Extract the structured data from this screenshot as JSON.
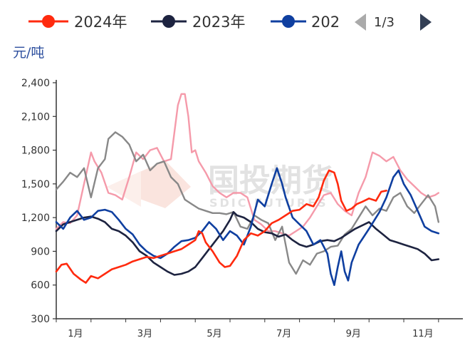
{
  "chart_data": {
    "type": "line",
    "ylabel": "元/吨",
    "ylim": [
      300,
      2400
    ],
    "yticks": [
      "2,400",
      "2,100",
      "1,800",
      "1,500",
      "1,200",
      "900",
      "600",
      "300"
    ],
    "xticks": [
      "1月",
      "3月",
      "5月",
      "7月",
      "9月",
      "11月"
    ],
    "grid": false,
    "legend_position": "top",
    "legend_page": "1/3",
    "series": [
      {
        "name": "2024年",
        "color": "#ff2a0e",
        "marker": true,
        "values": [
          [
            0,
            720
          ],
          [
            0.15,
            780
          ],
          [
            0.3,
            790
          ],
          [
            0.5,
            700
          ],
          [
            0.7,
            650
          ],
          [
            0.85,
            620
          ],
          [
            1.0,
            680
          ],
          [
            1.2,
            660
          ],
          [
            1.4,
            700
          ],
          [
            1.6,
            740
          ],
          [
            1.8,
            760
          ],
          [
            2.0,
            780
          ],
          [
            2.2,
            810
          ],
          [
            2.4,
            830
          ],
          [
            2.6,
            850
          ],
          [
            2.8,
            840
          ],
          [
            3.0,
            860
          ],
          [
            3.2,
            880
          ],
          [
            3.4,
            900
          ],
          [
            3.6,
            920
          ],
          [
            3.8,
            960
          ],
          [
            4.0,
            1000
          ],
          [
            4.1,
            1080
          ],
          [
            4.2,
            1060
          ],
          [
            4.3,
            980
          ],
          [
            4.5,
            900
          ],
          [
            4.7,
            800
          ],
          [
            4.85,
            760
          ],
          [
            5.0,
            770
          ],
          [
            5.2,
            860
          ],
          [
            5.4,
            1000
          ],
          [
            5.6,
            1060
          ],
          [
            5.8,
            1040
          ],
          [
            6.0,
            1080
          ],
          [
            6.2,
            1150
          ],
          [
            6.4,
            1180
          ],
          [
            6.6,
            1220
          ],
          [
            6.8,
            1260
          ],
          [
            7.0,
            1270
          ],
          [
            7.2,
            1320
          ],
          [
            7.4,
            1300
          ],
          [
            7.55,
            1380
          ],
          [
            7.7,
            1530
          ],
          [
            7.85,
            1620
          ],
          [
            8.0,
            1600
          ],
          [
            8.1,
            1500
          ],
          [
            8.2,
            1350
          ],
          [
            8.35,
            1260
          ],
          [
            8.5,
            1280
          ],
          [
            8.65,
            1320
          ],
          [
            8.8,
            1340
          ],
          [
            9.0,
            1370
          ],
          [
            9.2,
            1350
          ],
          [
            9.35,
            1430
          ],
          [
            9.5,
            1440
          ]
        ]
      },
      {
        "name": "2023年",
        "color": "#1d2340",
        "marker": true,
        "values": [
          [
            0,
            1080
          ],
          [
            0.2,
            1140
          ],
          [
            0.4,
            1160
          ],
          [
            0.6,
            1180
          ],
          [
            0.8,
            1200
          ],
          [
            1.0,
            1210
          ],
          [
            1.2,
            1190
          ],
          [
            1.4,
            1160
          ],
          [
            1.6,
            1100
          ],
          [
            1.8,
            1080
          ],
          [
            2.0,
            1040
          ],
          [
            2.2,
            980
          ],
          [
            2.4,
            900
          ],
          [
            2.6,
            860
          ],
          [
            2.8,
            800
          ],
          [
            3.0,
            760
          ],
          [
            3.2,
            720
          ],
          [
            3.4,
            690
          ],
          [
            3.6,
            700
          ],
          [
            3.8,
            720
          ],
          [
            4.0,
            760
          ],
          [
            4.2,
            840
          ],
          [
            4.4,
            920
          ],
          [
            4.6,
            1000
          ],
          [
            4.8,
            1080
          ],
          [
            5.0,
            1180
          ],
          [
            5.1,
            1250
          ],
          [
            5.2,
            1220
          ],
          [
            5.4,
            1200
          ],
          [
            5.6,
            1160
          ],
          [
            5.8,
            1100
          ],
          [
            6.0,
            1070
          ],
          [
            6.2,
            1060
          ],
          [
            6.4,
            1030
          ],
          [
            6.6,
            1050
          ],
          [
            6.8,
            1000
          ],
          [
            7.0,
            960
          ],
          [
            7.2,
            940
          ],
          [
            7.4,
            960
          ],
          [
            7.6,
            990
          ],
          [
            7.8,
            1000
          ],
          [
            8.0,
            990
          ],
          [
            8.2,
            1020
          ],
          [
            8.4,
            1060
          ],
          [
            8.6,
            1100
          ],
          [
            8.8,
            1130
          ],
          [
            9.0,
            1160
          ],
          [
            9.2,
            1100
          ],
          [
            9.4,
            1050
          ],
          [
            9.6,
            1000
          ],
          [
            9.8,
            980
          ],
          [
            10.0,
            960
          ],
          [
            10.2,
            940
          ],
          [
            10.4,
            920
          ],
          [
            10.6,
            880
          ],
          [
            10.8,
            820
          ],
          [
            11.0,
            830
          ]
        ]
      },
      {
        "name": "202",
        "color": "#0f3fa0",
        "marker": true,
        "values": [
          [
            0,
            1160
          ],
          [
            0.2,
            1100
          ],
          [
            0.4,
            1200
          ],
          [
            0.6,
            1260
          ],
          [
            0.8,
            1180
          ],
          [
            1.0,
            1200
          ],
          [
            1.2,
            1260
          ],
          [
            1.4,
            1270
          ],
          [
            1.6,
            1250
          ],
          [
            1.8,
            1180
          ],
          [
            2.0,
            1100
          ],
          [
            2.2,
            1050
          ],
          [
            2.4,
            960
          ],
          [
            2.6,
            900
          ],
          [
            2.8,
            860
          ],
          [
            3.0,
            840
          ],
          [
            3.2,
            880
          ],
          [
            3.4,
            940
          ],
          [
            3.6,
            990
          ],
          [
            3.8,
            1000
          ],
          [
            4.0,
            1020
          ],
          [
            4.2,
            1080
          ],
          [
            4.4,
            1160
          ],
          [
            4.6,
            1100
          ],
          [
            4.8,
            1000
          ],
          [
            5.0,
            1080
          ],
          [
            5.2,
            1040
          ],
          [
            5.4,
            960
          ],
          [
            5.6,
            1120
          ],
          [
            5.8,
            1360
          ],
          [
            6.0,
            1300
          ],
          [
            6.2,
            1500
          ],
          [
            6.35,
            1640
          ],
          [
            6.5,
            1500
          ],
          [
            6.6,
            1380
          ],
          [
            6.8,
            1200
          ],
          [
            7.0,
            1140
          ],
          [
            7.2,
            1080
          ],
          [
            7.4,
            960
          ],
          [
            7.6,
            1000
          ],
          [
            7.8,
            880
          ],
          [
            7.9,
            700
          ],
          [
            8.0,
            600
          ],
          [
            8.1,
            760
          ],
          [
            8.2,
            900
          ],
          [
            8.3,
            720
          ],
          [
            8.4,
            640
          ],
          [
            8.5,
            800
          ],
          [
            8.7,
            960
          ],
          [
            9.0,
            1100
          ],
          [
            9.3,
            1250
          ],
          [
            9.5,
            1380
          ],
          [
            9.7,
            1560
          ],
          [
            9.85,
            1620
          ],
          [
            10.0,
            1500
          ],
          [
            10.2,
            1400
          ],
          [
            10.4,
            1260
          ],
          [
            10.6,
            1120
          ],
          [
            10.8,
            1080
          ],
          [
            11.0,
            1060
          ]
        ]
      },
      {
        "color": "#888888",
        "marker": false,
        "values": [
          [
            0,
            1450
          ],
          [
            0.2,
            1520
          ],
          [
            0.4,
            1600
          ],
          [
            0.6,
            1560
          ],
          [
            0.8,
            1640
          ],
          [
            1.0,
            1380
          ],
          [
            1.2,
            1640
          ],
          [
            1.4,
            1720
          ],
          [
            1.5,
            1900
          ],
          [
            1.7,
            1960
          ],
          [
            1.9,
            1920
          ],
          [
            2.1,
            1850
          ],
          [
            2.3,
            1700
          ],
          [
            2.5,
            1760
          ],
          [
            2.7,
            1620
          ],
          [
            2.9,
            1680
          ],
          [
            3.1,
            1700
          ],
          [
            3.3,
            1560
          ],
          [
            3.5,
            1500
          ],
          [
            3.7,
            1360
          ],
          [
            3.9,
            1320
          ],
          [
            4.1,
            1280
          ],
          [
            4.3,
            1260
          ],
          [
            4.5,
            1240
          ],
          [
            4.7,
            1240
          ],
          [
            4.9,
            1230
          ],
          [
            5.1,
            1250
          ],
          [
            5.3,
            1120
          ],
          [
            5.5,
            1100
          ],
          [
            5.7,
            1220
          ],
          [
            5.9,
            1180
          ],
          [
            6.1,
            1150
          ],
          [
            6.3,
            1000
          ],
          [
            6.5,
            1120
          ],
          [
            6.7,
            800
          ],
          [
            6.9,
            700
          ],
          [
            7.1,
            820
          ],
          [
            7.3,
            780
          ],
          [
            7.5,
            880
          ],
          [
            7.7,
            900
          ],
          [
            7.9,
            940
          ],
          [
            8.1,
            950
          ],
          [
            8.3,
            1050
          ],
          [
            8.5,
            1100
          ],
          [
            8.7,
            1200
          ],
          [
            8.9,
            1300
          ],
          [
            9.1,
            1220
          ],
          [
            9.3,
            1280
          ],
          [
            9.5,
            1260
          ],
          [
            9.7,
            1380
          ],
          [
            9.9,
            1420
          ],
          [
            10.1,
            1300
          ],
          [
            10.3,
            1240
          ],
          [
            10.5,
            1320
          ],
          [
            10.7,
            1400
          ],
          [
            10.9,
            1300
          ],
          [
            11.0,
            1160
          ]
        ]
      },
      {
        "color": "#f59aaa",
        "marker": false,
        "values": [
          [
            0,
            1100
          ],
          [
            0.2,
            1160
          ],
          [
            0.4,
            1150
          ],
          [
            0.6,
            1220
          ],
          [
            0.8,
            1500
          ],
          [
            1.0,
            1780
          ],
          [
            1.1,
            1700
          ],
          [
            1.3,
            1600
          ],
          [
            1.5,
            1420
          ],
          [
            1.7,
            1400
          ],
          [
            1.9,
            1360
          ],
          [
            2.1,
            1560
          ],
          [
            2.3,
            1780
          ],
          [
            2.5,
            1720
          ],
          [
            2.7,
            1800
          ],
          [
            2.9,
            1820
          ],
          [
            3.1,
            1700
          ],
          [
            3.3,
            1720
          ],
          [
            3.5,
            2200
          ],
          [
            3.6,
            2300
          ],
          [
            3.7,
            2300
          ],
          [
            3.8,
            2100
          ],
          [
            3.9,
            1780
          ],
          [
            4.0,
            1800
          ],
          [
            4.1,
            1700
          ],
          [
            4.3,
            1600
          ],
          [
            4.5,
            1480
          ],
          [
            4.7,
            1420
          ],
          [
            4.9,
            1380
          ],
          [
            5.1,
            1420
          ],
          [
            5.3,
            1420
          ],
          [
            5.5,
            1380
          ],
          [
            5.7,
            1180
          ],
          [
            5.9,
            1140
          ],
          [
            6.1,
            1080
          ],
          [
            6.3,
            1080
          ],
          [
            6.5,
            1060
          ],
          [
            6.7,
            1040
          ],
          [
            6.9,
            1080
          ],
          [
            7.1,
            1120
          ],
          [
            7.3,
            1200
          ],
          [
            7.5,
            1300
          ],
          [
            7.7,
            1400
          ],
          [
            7.9,
            1420
          ],
          [
            8.1,
            1320
          ],
          [
            8.3,
            1260
          ],
          [
            8.5,
            1220
          ],
          [
            8.7,
            1420
          ],
          [
            8.9,
            1560
          ],
          [
            9.1,
            1780
          ],
          [
            9.3,
            1750
          ],
          [
            9.5,
            1700
          ],
          [
            9.7,
            1740
          ],
          [
            9.9,
            1620
          ],
          [
            10.1,
            1540
          ],
          [
            10.3,
            1480
          ],
          [
            10.5,
            1420
          ],
          [
            10.7,
            1380
          ],
          [
            10.9,
            1400
          ],
          [
            11.0,
            1420
          ]
        ]
      }
    ]
  },
  "watermark": {
    "cn": "国投期货",
    "en": "SDIC FUTURES"
  },
  "icons": {
    "prev": "chevron-left-icon",
    "next": "chevron-right-icon"
  }
}
